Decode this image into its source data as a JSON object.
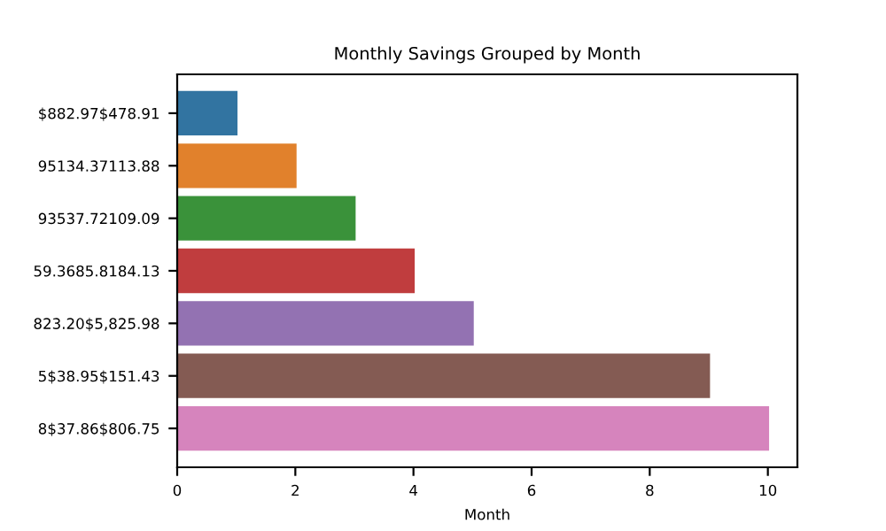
{
  "chart_data": {
    "type": "bar",
    "orientation": "horizontal",
    "title": "Monthly Savings Grouped by Month",
    "xlabel": "Month",
    "categories": [
      "$882.97$478.91",
      "95134.37113.88",
      "93537.72109.09",
      "59.3685.8184.13",
      "823.20$5,825.98",
      "5$38.95$151.43",
      "8$37.86$806.75"
    ],
    "values": [
      1,
      2,
      3,
      4,
      5,
      9,
      10
    ],
    "colors": [
      "#3274a1",
      "#e1812c",
      "#3a923a",
      "#c03d3e",
      "#9372b2",
      "#845b53",
      "#d684bd"
    ],
    "xlim": [
      0,
      10.5
    ],
    "xticks": [
      0,
      2,
      4,
      6,
      8,
      10
    ],
    "grid": false
  }
}
